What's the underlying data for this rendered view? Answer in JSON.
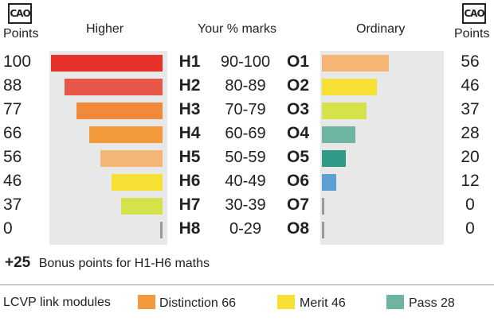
{
  "headers": {
    "left_points": "Points",
    "higher": "Higher",
    "your_marks": "Your % marks",
    "ordinary": "Ordinary",
    "right_points": "Points"
  },
  "logo_text": "CAO",
  "colors": {
    "panel_bg": "#e8e8e8",
    "red": "#e5332a",
    "orange": "#f39a3c",
    "light_orange": "#f5b574",
    "yellow": "#f7e034",
    "yellow_green": "#d6e24a",
    "teal_light": "#6fb4a3",
    "teal": "#2f9a86",
    "blue": "#5b9fd3",
    "grey": "#999999"
  },
  "chart_data": {
    "type": "bar",
    "categories": [
      "H1",
      "H2",
      "H3",
      "H4",
      "H5",
      "H6",
      "H7",
      "H8"
    ],
    "ordinary_categories": [
      "O1",
      "O2",
      "O3",
      "O4",
      "O5",
      "O6",
      "O7",
      "O8"
    ],
    "ranges": [
      "90-100",
      "80-89",
      "70-79",
      "60-69",
      "50-59",
      "40-49",
      "30-39",
      "0-29"
    ],
    "series": [
      {
        "name": "Higher",
        "values": [
          100,
          88,
          77,
          66,
          56,
          46,
          37,
          0
        ]
      },
      {
        "name": "Ordinary",
        "values": [
          56,
          46,
          37,
          28,
          20,
          12,
          0,
          0
        ]
      }
    ],
    "higher_colors": [
      "#e5332a",
      "#e8564a",
      "#f08a3a",
      "#f39a3c",
      "#f5b574",
      "#f7e034",
      "#d6e24a",
      "#999999"
    ],
    "ordinary_colors": [
      "#f5b574",
      "#f7e034",
      "#d6e24a",
      "#6fb4a3",
      "#2f9a86",
      "#5b9fd3",
      "#999999",
      "#999999"
    ],
    "xlim": [
      0,
      100
    ]
  },
  "bonus": {
    "value": "+25",
    "text": "Bonus points for H1-H6 maths"
  },
  "lcvp": {
    "label": "LCVP link modules",
    "items": [
      {
        "text": "Distinction 66",
        "color": "#f39a3c"
      },
      {
        "text": "Merit 46",
        "color": "#f7e034"
      },
      {
        "text": "Pass 28",
        "color": "#6fb4a3"
      }
    ]
  }
}
